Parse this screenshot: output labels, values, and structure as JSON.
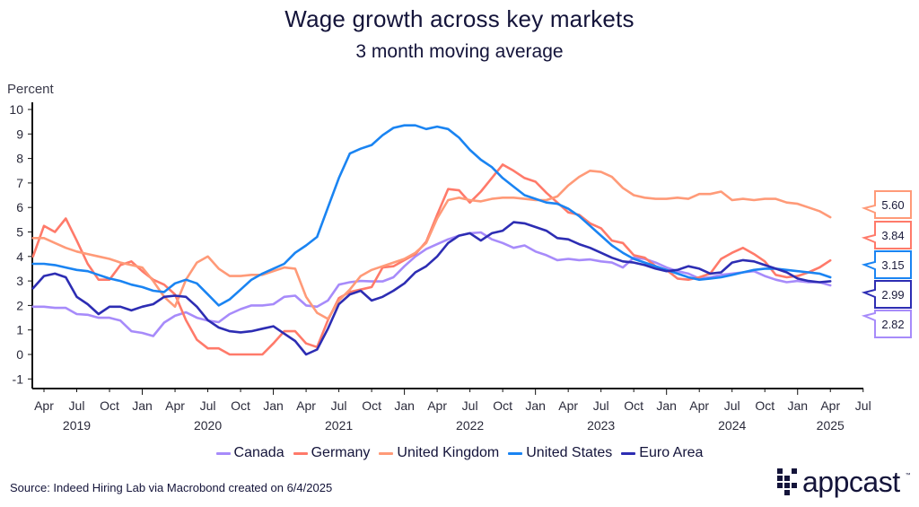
{
  "chart_data": {
    "type": "line",
    "title": "Wage growth across key markets",
    "subtitle": "3 month moving average",
    "ylabel": "Percent",
    "xlabel": "",
    "ylim": [
      -1,
      10
    ],
    "yticks": [
      -1,
      0,
      1,
      2,
      3,
      4,
      5,
      6,
      7,
      8,
      9,
      10
    ],
    "grid": false,
    "legend_position": "bottom",
    "x_start": "2019-03",
    "x_end": "2025-04",
    "x_axis_range": [
      "2019-03",
      "2025-07"
    ],
    "x_tick_labels": [
      "Apr",
      "Jul",
      "Oct",
      "Jan",
      "Apr",
      "Jul",
      "Oct",
      "Jan",
      "Apr",
      "Jul",
      "Oct",
      "Jan",
      "Apr",
      "Jul",
      "Oct",
      "Jan",
      "Apr",
      "Jul",
      "Oct",
      "Jan",
      "Apr",
      "Jul",
      "Oct",
      "Jan",
      "Apr",
      "Jul"
    ],
    "x_tick_months": [
      "2019-04",
      "2019-07",
      "2019-10",
      "2020-01",
      "2020-04",
      "2020-07",
      "2020-10",
      "2021-01",
      "2021-04",
      "2021-07",
      "2021-10",
      "2022-01",
      "2022-04",
      "2022-07",
      "2022-10",
      "2023-01",
      "2023-04",
      "2023-07",
      "2023-10",
      "2024-01",
      "2024-04",
      "2024-07",
      "2024-10",
      "2025-01",
      "2025-04",
      "2025-07"
    ],
    "x_year_labels": [
      {
        "label": "2019",
        "month": "2019-07"
      },
      {
        "label": "2020",
        "month": "2020-07"
      },
      {
        "label": "2021",
        "month": "2021-07"
      },
      {
        "label": "2022",
        "month": "2022-07"
      },
      {
        "label": "2023",
        "month": "2023-07"
      },
      {
        "label": "2024",
        "month": "2024-07"
      },
      {
        "label": "2025",
        "month": "2025-04"
      }
    ],
    "series": [
      {
        "name": "Canada",
        "color": "#a78bfa",
        "end_label": "2.82",
        "values": [
          1.95,
          1.95,
          1.9,
          1.9,
          1.65,
          1.62,
          1.5,
          1.5,
          1.38,
          0.95,
          0.88,
          0.75,
          1.3,
          1.58,
          1.72,
          1.5,
          1.38,
          1.32,
          1.65,
          1.85,
          2.0,
          2.0,
          2.05,
          2.35,
          2.4,
          2.0,
          1.95,
          2.2,
          2.85,
          2.95,
          3.0,
          2.98,
          2.98,
          3.15,
          3.6,
          4.0,
          4.3,
          4.5,
          4.7,
          4.85,
          4.95,
          4.98,
          4.7,
          4.55,
          4.35,
          4.45,
          4.2,
          4.05,
          3.85,
          3.9,
          3.85,
          3.88,
          3.8,
          3.75,
          3.55,
          3.95,
          3.9,
          3.75,
          3.55,
          3.4,
          3.3,
          3.1,
          3.15,
          3.25,
          3.3,
          3.35,
          3.4,
          3.2,
          3.05,
          2.95,
          3.0,
          2.95,
          2.95,
          2.82
        ]
      },
      {
        "name": "Germany",
        "color": "#ff7a6a",
        "end_label": "3.84",
        "values": [
          4.0,
          5.25,
          5.0,
          5.55,
          4.65,
          3.7,
          3.05,
          3.05,
          3.65,
          3.8,
          3.4,
          3.05,
          2.85,
          2.45,
          1.4,
          0.6,
          0.25,
          0.25,
          0.0,
          0.0,
          0.0,
          0.0,
          0.45,
          0.95,
          0.95,
          0.45,
          0.3,
          1.4,
          2.3,
          2.55,
          2.65,
          2.75,
          3.55,
          3.6,
          3.85,
          4.1,
          4.6,
          5.7,
          6.75,
          6.7,
          6.2,
          6.65,
          7.2,
          7.75,
          7.5,
          7.2,
          7.05,
          6.6,
          6.2,
          5.8,
          5.7,
          5.35,
          5.15,
          4.65,
          4.55,
          4.05,
          3.95,
          3.6,
          3.45,
          3.1,
          3.05,
          3.15,
          3.3,
          3.9,
          4.15,
          4.35,
          4.1,
          3.8,
          3.25,
          3.15,
          3.2,
          3.35,
          3.55,
          3.84
        ]
      },
      {
        "name": "United Kingdom",
        "color": "#ff9a78",
        "end_label": "5.60",
        "values": [
          4.75,
          4.75,
          4.55,
          4.35,
          4.2,
          4.1,
          4.0,
          3.9,
          3.75,
          3.65,
          3.55,
          3.0,
          2.35,
          1.95,
          3.05,
          3.75,
          4.0,
          3.5,
          3.2,
          3.2,
          3.25,
          3.25,
          3.4,
          3.55,
          3.5,
          2.35,
          1.7,
          1.45,
          2.2,
          2.65,
          3.2,
          3.45,
          3.6,
          3.75,
          3.9,
          4.15,
          4.55,
          5.55,
          6.3,
          6.4,
          6.3,
          6.25,
          6.35,
          6.4,
          6.4,
          6.35,
          6.3,
          6.3,
          6.45,
          6.9,
          7.25,
          7.5,
          7.45,
          7.25,
          6.8,
          6.5,
          6.4,
          6.35,
          6.35,
          6.4,
          6.35,
          6.55,
          6.55,
          6.65,
          6.3,
          6.35,
          6.3,
          6.35,
          6.35,
          6.2,
          6.15,
          6.0,
          5.85,
          5.6
        ]
      },
      {
        "name": "United States",
        "color": "#1a84f2",
        "end_label": "3.15",
        "values": [
          3.7,
          3.7,
          3.65,
          3.55,
          3.45,
          3.4,
          3.25,
          3.1,
          3.0,
          2.85,
          2.75,
          2.6,
          2.55,
          2.9,
          3.05,
          2.9,
          2.45,
          2.0,
          2.25,
          2.65,
          3.05,
          3.3,
          3.5,
          3.7,
          4.15,
          4.45,
          4.8,
          6.0,
          7.2,
          8.2,
          8.4,
          8.55,
          8.95,
          9.25,
          9.35,
          9.35,
          9.2,
          9.3,
          9.2,
          8.85,
          8.35,
          7.95,
          7.65,
          7.2,
          6.85,
          6.5,
          6.35,
          6.2,
          6.15,
          5.95,
          5.65,
          5.25,
          4.85,
          4.45,
          4.15,
          3.9,
          3.75,
          3.6,
          3.45,
          3.3,
          3.15,
          3.05,
          3.1,
          3.15,
          3.25,
          3.35,
          3.45,
          3.5,
          3.5,
          3.45,
          3.4,
          3.35,
          3.3,
          3.15
        ]
      },
      {
        "name": "Euro Area",
        "color": "#2d2db3",
        "end_label": "2.99",
        "values": [
          2.7,
          3.2,
          3.3,
          3.15,
          2.35,
          2.05,
          1.65,
          1.95,
          1.95,
          1.8,
          1.95,
          2.05,
          2.35,
          2.4,
          2.35,
          1.95,
          1.4,
          1.1,
          0.95,
          0.9,
          0.95,
          1.05,
          1.15,
          0.85,
          0.55,
          0.0,
          0.2,
          1.05,
          2.05,
          2.45,
          2.6,
          2.2,
          2.35,
          2.6,
          2.9,
          3.35,
          3.6,
          4.0,
          4.55,
          4.85,
          4.95,
          4.65,
          4.95,
          5.05,
          5.4,
          5.35,
          5.2,
          5.05,
          4.75,
          4.7,
          4.5,
          4.35,
          4.15,
          3.95,
          3.8,
          3.75,
          3.65,
          3.5,
          3.4,
          3.45,
          3.6,
          3.5,
          3.3,
          3.35,
          3.75,
          3.85,
          3.8,
          3.65,
          3.5,
          3.35,
          3.1,
          3.0,
          2.95,
          2.99
        ]
      }
    ]
  },
  "footer": {
    "source": "Source: Indeed Hiring Lab via Macrobond created on 6/4/2025",
    "logo_text": "appcast",
    "logo_tm": "™"
  }
}
